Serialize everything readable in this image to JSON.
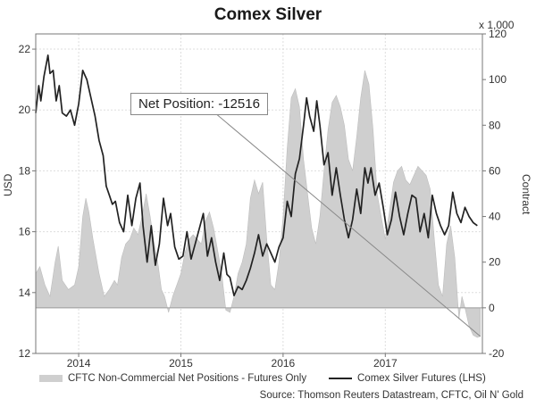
{
  "chart_data": {
    "type": "line",
    "title": "Comex Silver",
    "ylabel_left": "USD",
    "ylabel_right": "Contract",
    "y2_multiplier_label": "x 1,000",
    "ylim_left": [
      12,
      22.5
    ],
    "ylim_right": [
      -20,
      120
    ],
    "yticks_left": [
      "12",
      "14",
      "16",
      "18",
      "20",
      "22"
    ],
    "yticks_right": [
      "-20",
      "0",
      "20",
      "40",
      "60",
      "80",
      "100",
      "120"
    ],
    "xlim": [
      2013.58,
      2017.95
    ],
    "xticks": [
      {
        "label": "2014",
        "x": 2014.0
      },
      {
        "label": "2015",
        "x": 2015.0
      },
      {
        "label": "2016",
        "x": 2016.0
      },
      {
        "label": "2017",
        "x": 2017.0
      }
    ],
    "grid": true,
    "annotation": {
      "text": "Net Position: -12516",
      "x": 2017.93,
      "y": -12.5
    },
    "legend": {
      "position": "bottom"
    },
    "source": "Source: Thomson Reuters Datastream, CFTC, Oil N' Gold",
    "series": [
      {
        "name": "CFTC Non-Commercial Net Positions - Futures Only",
        "axis": "right",
        "kind": "area",
        "color": "#cfcfcf",
        "points": [
          [
            2013.58,
            15
          ],
          [
            2013.62,
            18
          ],
          [
            2013.67,
            10
          ],
          [
            2013.72,
            5
          ],
          [
            2013.77,
            20
          ],
          [
            2013.8,
            27
          ],
          [
            2013.84,
            12
          ],
          [
            2013.9,
            8
          ],
          [
            2013.96,
            10
          ],
          [
            2014.0,
            18
          ],
          [
            2014.04,
            40
          ],
          [
            2014.07,
            48
          ],
          [
            2014.1,
            42
          ],
          [
            2014.14,
            30
          ],
          [
            2014.2,
            15
          ],
          [
            2014.25,
            5
          ],
          [
            2014.3,
            8
          ],
          [
            2014.35,
            12
          ],
          [
            2014.38,
            10
          ],
          [
            2014.42,
            22
          ],
          [
            2014.46,
            28
          ],
          [
            2014.5,
            30
          ],
          [
            2014.54,
            35
          ],
          [
            2014.58,
            32
          ],
          [
            2014.62,
            40
          ],
          [
            2014.66,
            50
          ],
          [
            2014.7,
            40
          ],
          [
            2014.74,
            28
          ],
          [
            2014.78,
            18
          ],
          [
            2014.81,
            8
          ],
          [
            2014.84,
            5
          ],
          [
            2014.88,
            -2
          ],
          [
            2014.92,
            5
          ],
          [
            2014.96,
            10
          ],
          [
            2015.0,
            15
          ],
          [
            2015.04,
            24
          ],
          [
            2015.08,
            30
          ],
          [
            2015.12,
            32
          ],
          [
            2015.16,
            30
          ],
          [
            2015.2,
            28
          ],
          [
            2015.24,
            38
          ],
          [
            2015.28,
            42
          ],
          [
            2015.32,
            35
          ],
          [
            2015.36,
            25
          ],
          [
            2015.4,
            15
          ],
          [
            2015.44,
            -1
          ],
          [
            2015.48,
            -2
          ],
          [
            2015.52,
            5
          ],
          [
            2015.56,
            15
          ],
          [
            2015.6,
            20
          ],
          [
            2015.64,
            28
          ],
          [
            2015.68,
            48
          ],
          [
            2015.72,
            56
          ],
          [
            2015.76,
            50
          ],
          [
            2015.8,
            55
          ],
          [
            2015.84,
            30
          ],
          [
            2015.88,
            10
          ],
          [
            2015.92,
            8
          ],
          [
            2015.96,
            20
          ],
          [
            2016.0,
            40
          ],
          [
            2016.04,
            70
          ],
          [
            2016.08,
            92
          ],
          [
            2016.12,
            96
          ],
          [
            2016.16,
            88
          ],
          [
            2016.2,
            65
          ],
          [
            2016.24,
            50
          ],
          [
            2016.28,
            35
          ],
          [
            2016.32,
            28
          ],
          [
            2016.36,
            40
          ],
          [
            2016.4,
            60
          ],
          [
            2016.44,
            78
          ],
          [
            2016.48,
            90
          ],
          [
            2016.52,
            93
          ],
          [
            2016.56,
            88
          ],
          [
            2016.6,
            80
          ],
          [
            2016.64,
            65
          ],
          [
            2016.68,
            60
          ],
          [
            2016.72,
            75
          ],
          [
            2016.76,
            92
          ],
          [
            2016.8,
            104
          ],
          [
            2016.84,
            98
          ],
          [
            2016.88,
            78
          ],
          [
            2016.92,
            50
          ],
          [
            2016.96,
            40
          ],
          [
            2017.0,
            30
          ],
          [
            2017.04,
            42
          ],
          [
            2017.08,
            55
          ],
          [
            2017.12,
            60
          ],
          [
            2017.16,
            62
          ],
          [
            2017.2,
            56
          ],
          [
            2017.24,
            54
          ],
          [
            2017.28,
            58
          ],
          [
            2017.32,
            62
          ],
          [
            2017.36,
            60
          ],
          [
            2017.4,
            58
          ],
          [
            2017.44,
            52
          ],
          [
            2017.48,
            30
          ],
          [
            2017.52,
            10
          ],
          [
            2017.56,
            5
          ],
          [
            2017.6,
            28
          ],
          [
            2017.64,
            36
          ],
          [
            2017.68,
            22
          ],
          [
            2017.72,
            -5
          ],
          [
            2017.75,
            5
          ],
          [
            2017.78,
            0
          ],
          [
            2017.82,
            -8
          ],
          [
            2017.86,
            -12
          ],
          [
            2017.9,
            -13
          ],
          [
            2017.93,
            -12.5
          ]
        ]
      },
      {
        "name": "Comex Silver Futures (LHS)",
        "axis": "left",
        "kind": "line",
        "color": "#222222",
        "points": [
          [
            2013.58,
            19.9
          ],
          [
            2013.61,
            20.8
          ],
          [
            2013.63,
            20.3
          ],
          [
            2013.66,
            21.1
          ],
          [
            2013.7,
            21.8
          ],
          [
            2013.72,
            21.2
          ],
          [
            2013.75,
            21.3
          ],
          [
            2013.78,
            20.3
          ],
          [
            2013.81,
            20.8
          ],
          [
            2013.84,
            19.9
          ],
          [
            2013.88,
            19.8
          ],
          [
            2013.92,
            20.0
          ],
          [
            2013.96,
            19.5
          ],
          [
            2014.0,
            20.2
          ],
          [
            2014.04,
            21.3
          ],
          [
            2014.08,
            21.0
          ],
          [
            2014.12,
            20.4
          ],
          [
            2014.16,
            19.8
          ],
          [
            2014.2,
            19.0
          ],
          [
            2014.24,
            18.5
          ],
          [
            2014.27,
            17.5
          ],
          [
            2014.3,
            17.2
          ],
          [
            2014.33,
            16.9
          ],
          [
            2014.36,
            17.0
          ],
          [
            2014.4,
            16.3
          ],
          [
            2014.44,
            16.0
          ],
          [
            2014.48,
            17.2
          ],
          [
            2014.52,
            16.2
          ],
          [
            2014.56,
            17.1
          ],
          [
            2014.6,
            17.6
          ],
          [
            2014.63,
            16.2
          ],
          [
            2014.67,
            15.0
          ],
          [
            2014.71,
            16.2
          ],
          [
            2014.75,
            14.9
          ],
          [
            2014.79,
            15.6
          ],
          [
            2014.83,
            17.1
          ],
          [
            2014.87,
            16.2
          ],
          [
            2014.9,
            16.6
          ],
          [
            2014.94,
            15.5
          ],
          [
            2014.98,
            15.1
          ],
          [
            2015.02,
            15.2
          ],
          [
            2015.06,
            16.0
          ],
          [
            2015.1,
            15.1
          ],
          [
            2015.14,
            15.6
          ],
          [
            2015.18,
            16.1
          ],
          [
            2015.22,
            16.6
          ],
          [
            2015.26,
            15.2
          ],
          [
            2015.3,
            15.8
          ],
          [
            2015.34,
            15.0
          ],
          [
            2015.38,
            14.4
          ],
          [
            2015.42,
            15.3
          ],
          [
            2015.45,
            14.6
          ],
          [
            2015.48,
            14.5
          ],
          [
            2015.52,
            13.9
          ],
          [
            2015.56,
            14.2
          ],
          [
            2015.6,
            14.1
          ],
          [
            2015.64,
            14.4
          ],
          [
            2015.68,
            14.8
          ],
          [
            2015.72,
            15.3
          ],
          [
            2015.76,
            15.9
          ],
          [
            2015.8,
            15.2
          ],
          [
            2015.84,
            15.6
          ],
          [
            2015.88,
            15.3
          ],
          [
            2015.92,
            15.0
          ],
          [
            2015.96,
            15.5
          ],
          [
            2016.0,
            15.8
          ],
          [
            2016.04,
            17.0
          ],
          [
            2016.08,
            16.5
          ],
          [
            2016.12,
            17.9
          ],
          [
            2016.16,
            18.4
          ],
          [
            2016.2,
            19.5
          ],
          [
            2016.23,
            20.4
          ],
          [
            2016.26,
            19.8
          ],
          [
            2016.3,
            19.3
          ],
          [
            2016.33,
            20.3
          ],
          [
            2016.36,
            19.5
          ],
          [
            2016.4,
            18.2
          ],
          [
            2016.44,
            18.6
          ],
          [
            2016.48,
            17.2
          ],
          [
            2016.52,
            18.1
          ],
          [
            2016.56,
            17.2
          ],
          [
            2016.6,
            16.4
          ],
          [
            2016.64,
            15.8
          ],
          [
            2016.68,
            16.4
          ],
          [
            2016.72,
            17.4
          ],
          [
            2016.76,
            16.6
          ],
          [
            2016.8,
            18.1
          ],
          [
            2016.83,
            17.6
          ],
          [
            2016.86,
            18.1
          ],
          [
            2016.9,
            17.2
          ],
          [
            2016.94,
            17.6
          ],
          [
            2016.98,
            16.8
          ],
          [
            2017.02,
            15.9
          ],
          [
            2017.06,
            16.4
          ],
          [
            2017.1,
            17.3
          ],
          [
            2017.14,
            16.5
          ],
          [
            2017.18,
            15.9
          ],
          [
            2017.22,
            16.6
          ],
          [
            2017.26,
            17.2
          ],
          [
            2017.3,
            17.1
          ],
          [
            2017.34,
            16.0
          ],
          [
            2017.38,
            16.6
          ],
          [
            2017.42,
            15.8
          ],
          [
            2017.46,
            17.2
          ],
          [
            2017.5,
            16.6
          ],
          [
            2017.54,
            16.2
          ],
          [
            2017.58,
            15.9
          ],
          [
            2017.62,
            16.2
          ],
          [
            2017.66,
            17.3
          ],
          [
            2017.7,
            16.6
          ],
          [
            2017.74,
            16.3
          ],
          [
            2017.78,
            16.8
          ],
          [
            2017.82,
            16.5
          ],
          [
            2017.86,
            16.3
          ],
          [
            2017.9,
            16.2
          ]
        ]
      }
    ]
  }
}
